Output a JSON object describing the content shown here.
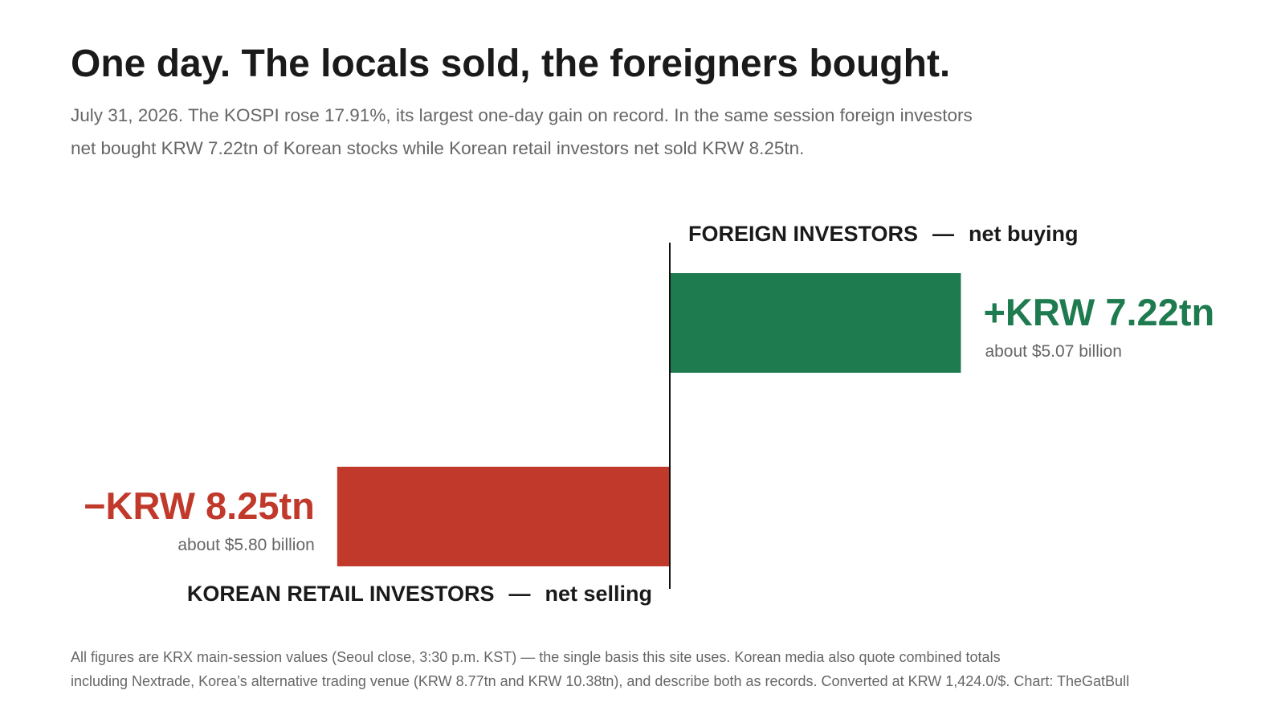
{
  "chart_data": {
    "type": "diverging-bar",
    "title": "One day. The locals sold, the foreigners bought.",
    "subtitle": [
      "July 31, 2026. The KOSPI rose 17.91%, its largest one-day gain on record. In the same session foreign investors",
      "net bought KRW 7.22tn of Korean stocks while Korean retail investors net sold KRW 8.25tn."
    ],
    "categories": [
      "FOREIGN INVESTORS",
      "KOREAN RETAIL INVESTORS"
    ],
    "separator": "—",
    "category_notes": [
      "net buying",
      "net selling"
    ],
    "values": [
      7.22,
      -8.25
    ],
    "value_labels": [
      "+KRW 7.22tn",
      "−KRW 8.25tn"
    ],
    "value_sublabels": [
      "about $5.07 billion",
      "about $5.80 billion"
    ],
    "colors": [
      "#1e7b4f",
      "#c0392b"
    ],
    "notes": [
      "All figures are KRX main-session values (Seoul close, 3:30 p.m. KST) — the single basis this site uses.  Korean media also quote combined totals",
      "including Nextrade, Korea’s alternative trading venue (KRW 8.77tn and KRW 10.38tn), and describe both as records.  Converted at KRW 1,424.0/$.  Chart: TheGatBull"
    ]
  }
}
